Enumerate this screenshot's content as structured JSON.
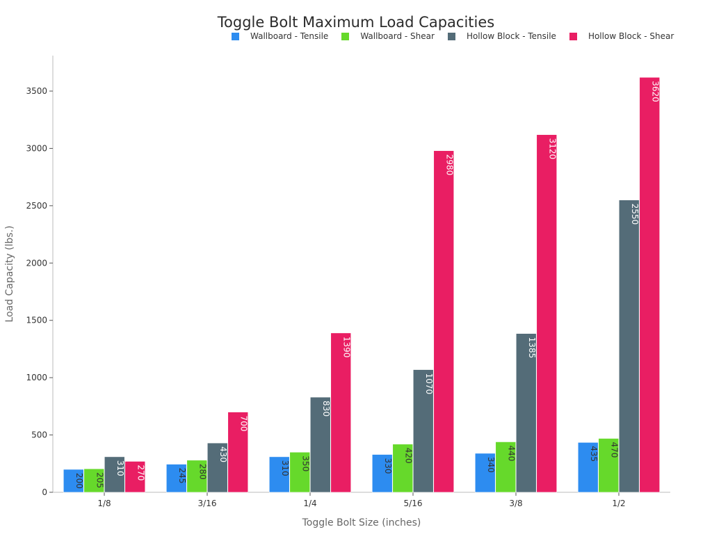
{
  "chart_data": {
    "type": "bar",
    "title": "Toggle Bolt Maximum Load Capacities",
    "xlabel": "Toggle Bolt Size (inches)",
    "ylabel": "Load Capacity (lbs.)",
    "ylim": [
      0,
      3800
    ],
    "yticks": [
      0,
      500,
      1000,
      1500,
      2000,
      2500,
      3000,
      3500
    ],
    "categories": [
      "1/8",
      "3/16",
      "1/4",
      "5/16",
      "3/8",
      "1/2"
    ],
    "legend_position": "top-right",
    "series": [
      {
        "name": "Wallboard - Tensile",
        "color": "#2d8cf0",
        "label_color": "#333333",
        "values": [
          200,
          245,
          310,
          330,
          340,
          435
        ]
      },
      {
        "name": "Wallboard - Shear",
        "color": "#66d92b",
        "label_color": "#333333",
        "values": [
          205,
          280,
          350,
          420,
          440,
          470
        ]
      },
      {
        "name": "Hollow Block - Tensile",
        "color": "#546c78",
        "label_color": "#ffffff",
        "values": [
          310,
          430,
          830,
          1070,
          1385,
          2550
        ]
      },
      {
        "name": "Hollow Block - Shear",
        "color": "#e91e63",
        "label_color": "#ffffff",
        "values": [
          270,
          700,
          1390,
          2980,
          3120,
          3620
        ]
      }
    ]
  }
}
